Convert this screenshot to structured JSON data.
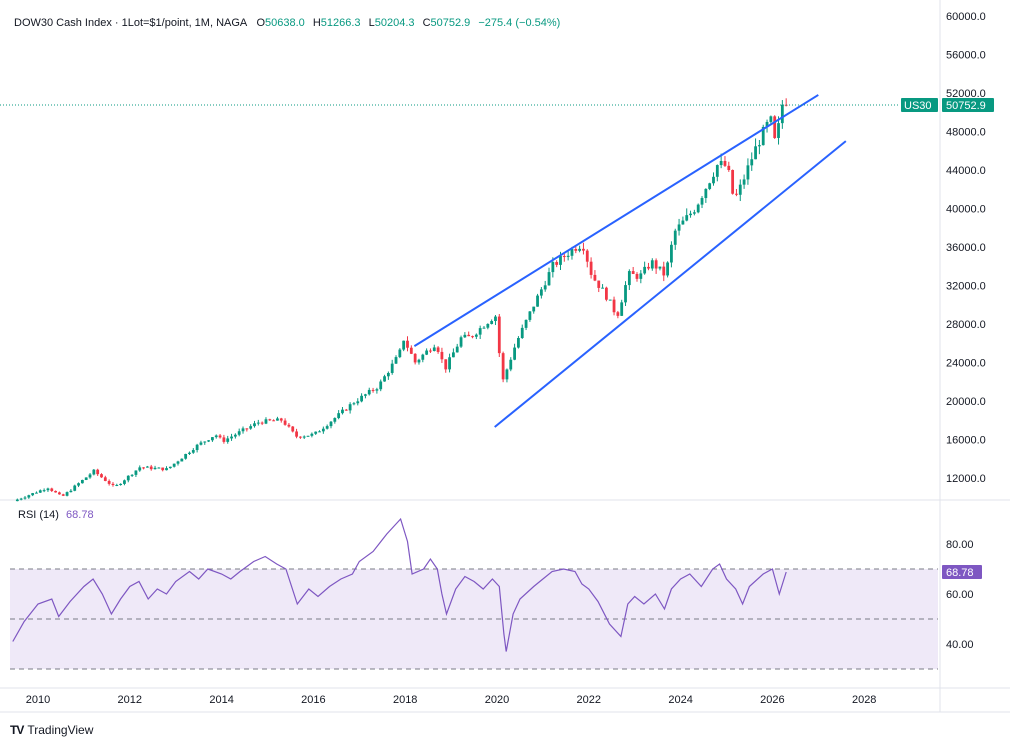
{
  "header": {
    "symbol_title": "DOW30 Cash Index · 1Lot=$1/point, 1M, NAGA",
    "o_label": "O",
    "o_value": "50638.0",
    "h_label": "H",
    "h_value": "51266.3",
    "l_label": "L",
    "l_value": "50204.3",
    "c_label": "C",
    "c_value": "50752.9",
    "change": "−275.4 (−0.54%)"
  },
  "price_tag": {
    "symbol": "US30",
    "value": "50752.9",
    "color": "#089981"
  },
  "rsi": {
    "label": "RSI (14)",
    "value": "68.78",
    "color": "#7e57c2"
  },
  "branding": {
    "name": "TradingView",
    "logo_text": "TV"
  },
  "colors": {
    "up": "#089981",
    "down": "#f23645",
    "trendline": "#2962ff",
    "rsi": "#7e57c2",
    "rsi_band": "#efe9f8"
  },
  "chart_data": {
    "type": "candlestick",
    "timeframe": "1M",
    "price_axis": {
      "ticks": [
        12000,
        16000,
        20000,
        24000,
        28000,
        32000,
        36000,
        40000,
        44000,
        48000,
        52000,
        56000,
        60000
      ],
      "tick_labels": [
        "12000.0",
        "16000.0",
        "20000.0",
        "24000.0",
        "28000.0",
        "32000.0",
        "36000.0",
        "40000.0",
        "44000.0",
        "48000.0",
        "52000.0",
        "56000.0",
        "60000.0"
      ]
    },
    "time_axis": {
      "ticks": [
        2010,
        2012,
        2014,
        2016,
        2018,
        2020,
        2022,
        2024,
        2026,
        2028
      ],
      "tick_labels": [
        "2010",
        "2012",
        "2014",
        "2016",
        "2018",
        "2020",
        "2022",
        "2024",
        "2026",
        "2028"
      ]
    },
    "last_price": 50752.9,
    "anchors": [
      [
        2009.55,
        9600
      ],
      [
        2010.3,
        11000
      ],
      [
        2010.6,
        10000
      ],
      [
        2011.3,
        12700
      ],
      [
        2011.75,
        11000
      ],
      [
        2012.3,
        13100
      ],
      [
        2012.9,
        12900
      ],
      [
        2013.5,
        15200
      ],
      [
        2013.95,
        16500
      ],
      [
        2014.1,
        15800
      ],
      [
        2014.9,
        17800
      ],
      [
        2015.4,
        18000
      ],
      [
        2015.7,
        16300
      ],
      [
        2016.1,
        16500
      ],
      [
        2016.6,
        18400
      ],
      [
        2016.95,
        19800
      ],
      [
        2017.5,
        21500
      ],
      [
        2017.95,
        24800
      ],
      [
        2018.05,
        26400
      ],
      [
        2018.3,
        24000
      ],
      [
        2018.75,
        26000
      ],
      [
        2018.95,
        23300
      ],
      [
        2019.3,
        26500
      ],
      [
        2019.5,
        26600
      ],
      [
        2019.95,
        28500
      ],
      [
        2020.05,
        28800
      ],
      [
        2020.2,
        21900
      ],
      [
        2020.5,
        26000
      ],
      [
        2020.85,
        29600
      ],
      [
        2021.3,
        34000
      ],
      [
        2021.75,
        35800
      ],
      [
        2021.95,
        36300
      ],
      [
        2022.15,
        33000
      ],
      [
        2022.45,
        31000
      ],
      [
        2022.7,
        28800
      ],
      [
        2022.95,
        33100
      ],
      [
        2023.2,
        32900
      ],
      [
        2023.45,
        34400
      ],
      [
        2023.75,
        33000
      ],
      [
        2023.95,
        37500
      ],
      [
        2024.4,
        40000
      ],
      [
        2024.9,
        44600
      ],
      [
        2025.1,
        44300
      ],
      [
        2025.25,
        40700
      ],
      [
        2025.4,
        42300
      ],
      [
        2025.7,
        46000
      ],
      [
        2025.95,
        48500
      ],
      [
        2026.05,
        49000
      ],
      [
        2026.15,
        46500
      ],
      [
        2026.3,
        50752.9
      ]
    ],
    "trendlines": [
      {
        "name": "upper",
        "points": [
          [
            2018.2,
            25700
          ],
          [
            2027.0,
            51800
          ]
        ]
      },
      {
        "name": "lower",
        "points": [
          [
            2019.95,
            17300
          ],
          [
            2027.6,
            47000
          ]
        ]
      }
    ],
    "rsi_series": [
      [
        2009.45,
        41
      ],
      [
        2009.7,
        49
      ],
      [
        2010.0,
        56
      ],
      [
        2010.3,
        58
      ],
      [
        2010.45,
        51
      ],
      [
        2010.7,
        57
      ],
      [
        2011.0,
        63
      ],
      [
        2011.2,
        66
      ],
      [
        2011.4,
        60
      ],
      [
        2011.6,
        52
      ],
      [
        2011.8,
        58
      ],
      [
        2012.0,
        63
      ],
      [
        2012.2,
        65
      ],
      [
        2012.4,
        58
      ],
      [
        2012.6,
        62
      ],
      [
        2012.8,
        60
      ],
      [
        2013.0,
        65
      ],
      [
        2013.3,
        69
      ],
      [
        2013.5,
        66
      ],
      [
        2013.7,
        70
      ],
      [
        2014.0,
        68
      ],
      [
        2014.2,
        66
      ],
      [
        2014.4,
        69
      ],
      [
        2014.7,
        73
      ],
      [
        2014.95,
        75
      ],
      [
        2015.2,
        72
      ],
      [
        2015.4,
        70
      ],
      [
        2015.65,
        56
      ],
      [
        2015.9,
        62
      ],
      [
        2016.1,
        59
      ],
      [
        2016.35,
        63
      ],
      [
        2016.6,
        66
      ],
      [
        2016.85,
        68
      ],
      [
        2017.0,
        73
      ],
      [
        2017.3,
        77
      ],
      [
        2017.6,
        84
      ],
      [
        2017.9,
        90
      ],
      [
        2018.05,
        81
      ],
      [
        2018.15,
        68
      ],
      [
        2018.4,
        70
      ],
      [
        2018.55,
        74
      ],
      [
        2018.7,
        70
      ],
      [
        2018.8,
        60
      ],
      [
        2018.9,
        52
      ],
      [
        2019.1,
        62
      ],
      [
        2019.3,
        67
      ],
      [
        2019.5,
        65
      ],
      [
        2019.7,
        62
      ],
      [
        2019.9,
        66
      ],
      [
        2020.05,
        63
      ],
      [
        2020.15,
        44
      ],
      [
        2020.2,
        37
      ],
      [
        2020.35,
        52
      ],
      [
        2020.5,
        58
      ],
      [
        2020.8,
        63
      ],
      [
        2021.0,
        66
      ],
      [
        2021.2,
        69
      ],
      [
        2021.45,
        70
      ],
      [
        2021.7,
        69
      ],
      [
        2021.85,
        64
      ],
      [
        2022.0,
        62
      ],
      [
        2022.2,
        57
      ],
      [
        2022.45,
        48
      ],
      [
        2022.7,
        43
      ],
      [
        2022.85,
        56
      ],
      [
        2023.0,
        59
      ],
      [
        2023.2,
        56
      ],
      [
        2023.45,
        60
      ],
      [
        2023.65,
        54
      ],
      [
        2023.8,
        62
      ],
      [
        2024.0,
        66
      ],
      [
        2024.2,
        68
      ],
      [
        2024.45,
        63
      ],
      [
        2024.7,
        70
      ],
      [
        2024.85,
        72
      ],
      [
        2025.0,
        66
      ],
      [
        2025.2,
        62
      ],
      [
        2025.35,
        56
      ],
      [
        2025.5,
        63
      ],
      [
        2025.8,
        68
      ],
      [
        2026.0,
        70
      ],
      [
        2026.15,
        60
      ],
      [
        2026.3,
        68.78
      ]
    ],
    "rsi_axis": {
      "ticks": [
        40,
        60,
        80
      ],
      "tick_labels": [
        "40.00",
        "60.00",
        "80.00"
      ],
      "band": [
        30,
        70
      ],
      "midline": 50
    }
  }
}
